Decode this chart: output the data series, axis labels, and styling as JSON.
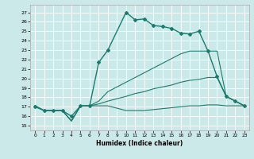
{
  "xlabel": "Humidex (Indice chaleur)",
  "xlim": [
    -0.5,
    23.5
  ],
  "ylim": [
    14.5,
    27.8
  ],
  "yticks": [
    15,
    16,
    17,
    18,
    19,
    20,
    21,
    22,
    23,
    24,
    25,
    26,
    27
  ],
  "xticks": [
    0,
    1,
    2,
    3,
    4,
    5,
    6,
    7,
    8,
    9,
    10,
    11,
    12,
    13,
    14,
    15,
    16,
    17,
    18,
    19,
    20,
    21,
    22,
    23
  ],
  "bg_color": "#cce9e9",
  "line_color": "#1a7a6e",
  "grid_color": "#ffffff",
  "lines": [
    {
      "x": [
        0,
        1,
        2,
        3,
        4,
        5,
        6,
        7,
        8,
        10,
        11,
        12,
        13,
        14,
        15,
        16,
        17,
        18,
        19,
        20,
        21,
        22,
        23
      ],
      "y": [
        17,
        16.6,
        16.6,
        16.6,
        16.0,
        17.1,
        17.1,
        21.7,
        23.0,
        27.0,
        26.2,
        26.3,
        25.6,
        25.5,
        25.3,
        24.8,
        24.7,
        25.0,
        22.9,
        20.2,
        18.1,
        17.6,
        17.1
      ],
      "marker": "D",
      "markersize": 2.0,
      "linewidth": 1.0,
      "has_marker": true
    },
    {
      "x": [
        0,
        1,
        2,
        3,
        4,
        5,
        6,
        7,
        8,
        10,
        11,
        12,
        13,
        14,
        15,
        16,
        17,
        18,
        19,
        20,
        21,
        22,
        23
      ],
      "y": [
        17.1,
        16.6,
        16.6,
        16.6,
        15.5,
        17.1,
        17.1,
        17.6,
        18.6,
        19.6,
        20.1,
        20.6,
        21.1,
        21.6,
        22.1,
        22.6,
        22.9,
        22.9,
        22.9,
        22.9,
        18.1,
        17.6,
        17.1
      ],
      "marker": null,
      "markersize": 0,
      "linewidth": 0.8,
      "has_marker": false
    },
    {
      "x": [
        0,
        1,
        2,
        3,
        4,
        5,
        6,
        7,
        8,
        10,
        11,
        12,
        13,
        14,
        15,
        16,
        17,
        18,
        19,
        20,
        21,
        22,
        23
      ],
      "y": [
        17.1,
        16.6,
        16.6,
        16.6,
        15.5,
        17.1,
        17.1,
        17.3,
        17.6,
        18.1,
        18.4,
        18.6,
        18.9,
        19.1,
        19.3,
        19.6,
        19.8,
        19.9,
        20.1,
        20.1,
        18.1,
        17.6,
        17.1
      ],
      "marker": null,
      "markersize": 0,
      "linewidth": 0.8,
      "has_marker": false
    },
    {
      "x": [
        0,
        1,
        2,
        3,
        4,
        5,
        6,
        7,
        8,
        10,
        11,
        12,
        13,
        14,
        15,
        16,
        17,
        18,
        19,
        20,
        21,
        22,
        23
      ],
      "y": [
        17.1,
        16.6,
        16.6,
        16.6,
        15.5,
        17.1,
        17.1,
        17.1,
        17.1,
        16.6,
        16.6,
        16.6,
        16.7,
        16.8,
        16.9,
        17.0,
        17.1,
        17.1,
        17.2,
        17.2,
        17.1,
        17.1,
        17.1
      ],
      "marker": null,
      "markersize": 0,
      "linewidth": 0.8,
      "has_marker": false
    }
  ]
}
